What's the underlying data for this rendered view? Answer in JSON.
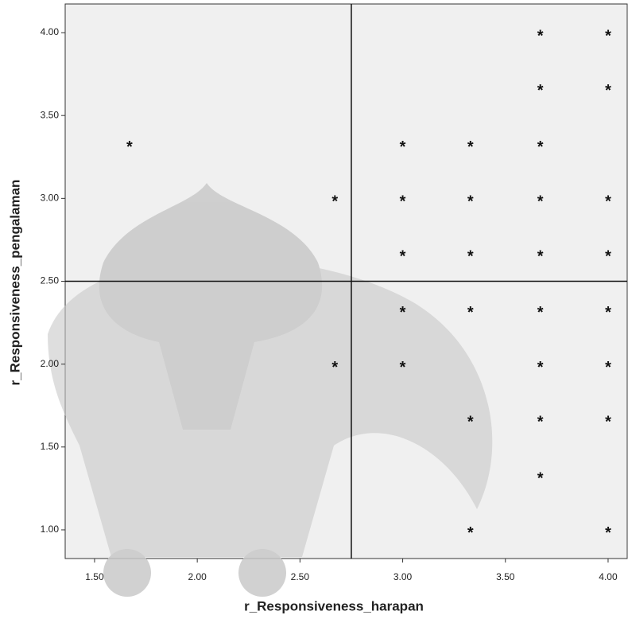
{
  "chart_data": {
    "type": "scatter",
    "x_label": "r_Responsiveness_harapan",
    "y_label": "r_Responsiveness_pengalaman",
    "x": [
      1.67,
      2.67,
      2.67,
      3.0,
      3.0,
      3.0,
      3.0,
      3.0,
      3.33,
      3.33,
      3.33,
      3.33,
      3.33,
      3.33,
      3.67,
      3.67,
      3.67,
      3.67,
      3.67,
      3.67,
      3.67,
      3.67,
      3.67,
      4.0,
      4.0,
      4.0,
      4.0,
      4.0,
      4.0,
      4.0,
      4.0
    ],
    "y": [
      3.33,
      3.0,
      2.0,
      3.33,
      3.0,
      2.67,
      2.33,
      2.0,
      3.33,
      3.0,
      2.67,
      2.33,
      1.67,
      1.0,
      4.0,
      3.67,
      3.33,
      3.0,
      2.67,
      2.33,
      2.0,
      1.67,
      1.33,
      4.0,
      3.67,
      3.0,
      2.67,
      2.33,
      2.0,
      1.67,
      1.0
    ],
    "xlim": [
      1.357,
      4.093
    ],
    "ylim": [
      0.827,
      4.173
    ],
    "xticks": [
      {
        "value": 1.5,
        "label": "1.50"
      },
      {
        "value": 2.0,
        "label": "2.00"
      },
      {
        "value": 2.5,
        "label": "2.50"
      },
      {
        "value": 3.0,
        "label": "3.00"
      },
      {
        "value": 3.5,
        "label": "3.50"
      },
      {
        "value": 4.0,
        "label": "4.00"
      }
    ],
    "yticks": [
      {
        "value": 1.0,
        "label": "1.00"
      },
      {
        "value": 1.5,
        "label": "1.50"
      },
      {
        "value": 2.0,
        "label": "2.00"
      },
      {
        "value": 2.5,
        "label": "2.50"
      },
      {
        "value": 3.0,
        "label": "3.00"
      },
      {
        "value": 3.5,
        "label": "3.50"
      },
      {
        "value": 4.0,
        "label": "4.00"
      }
    ],
    "xref": 2.75,
    "yref": 2.5
  }
}
